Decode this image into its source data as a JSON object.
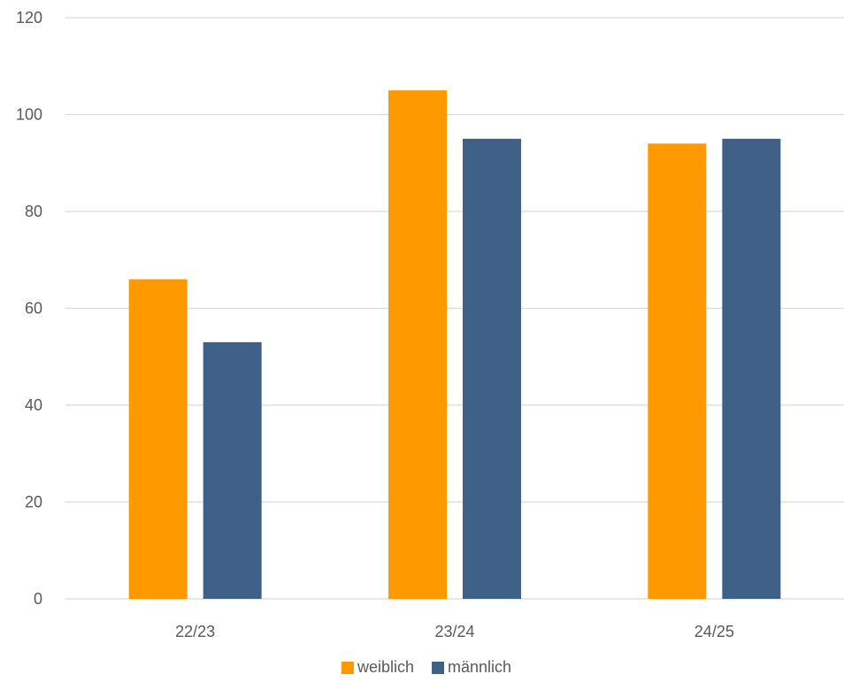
{
  "chart_data": {
    "type": "bar",
    "categories": [
      "22/23",
      "23/24",
      "24/25"
    ],
    "series": [
      {
        "name": "weiblich",
        "values": [
          66,
          105,
          94
        ],
        "color": "#FF9900"
      },
      {
        "name": "männlich",
        "values": [
          53,
          95,
          95
        ],
        "color": "#3F6188"
      }
    ],
    "yticks": [
      "0",
      "20",
      "40",
      "60",
      "80",
      "100",
      "120"
    ],
    "ylim": [
      0,
      120
    ],
    "grid": true,
    "legend_position": "bottom"
  }
}
